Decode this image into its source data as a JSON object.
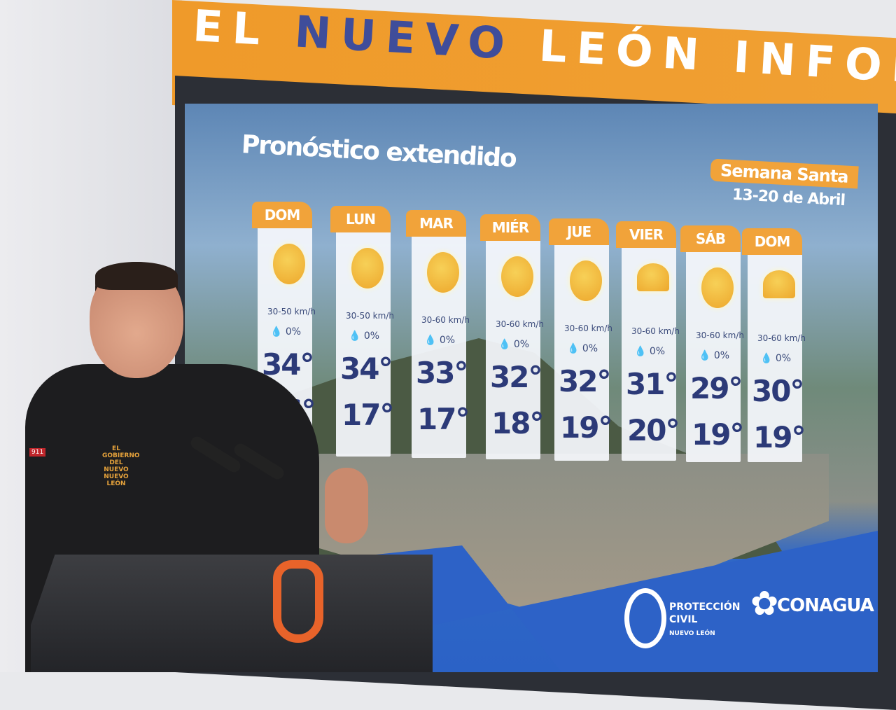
{
  "banner": {
    "title_part1": "EL",
    "title_part2": "NUEVO",
    "title_part3": "LEÓN INFORMA"
  },
  "forecast": {
    "title": "Pronóstico extendido",
    "period_label": "Semana Santa",
    "period_dates": "13-20 de Abril",
    "days": [
      {
        "day": "DOM",
        "icon": "sun-icon",
        "wind": "30-50 km/h",
        "rain": "0%",
        "max": "34°",
        "min": "16°"
      },
      {
        "day": "LUN",
        "icon": "sun-icon",
        "wind": "30-50 km/h",
        "rain": "0%",
        "max": "34°",
        "min": "17°"
      },
      {
        "day": "MAR",
        "icon": "sun-icon",
        "wind": "30-60 km/h",
        "rain": "0%",
        "max": "33°",
        "min": "17°"
      },
      {
        "day": "MIÉR",
        "icon": "sun-icon",
        "wind": "30-60 km/h",
        "rain": "0%",
        "max": "32°",
        "min": "18°"
      },
      {
        "day": "JUE",
        "icon": "sun-icon",
        "wind": "30-60 km/h",
        "rain": "0%",
        "max": "32°",
        "min": "19°"
      },
      {
        "day": "VIER",
        "icon": "partly-cloudy-icon",
        "wind": "30-60 km/h",
        "rain": "0%",
        "max": "31°",
        "min": "20°"
      },
      {
        "day": "SÁB",
        "icon": "sun-icon",
        "wind": "30-60 km/h",
        "rain": "0%",
        "max": "29°",
        "min": "19°"
      },
      {
        "day": "DOM",
        "icon": "partly-cloudy-icon",
        "wind": "30-60 km/h",
        "rain": "0%",
        "max": "30°",
        "min": "19°"
      }
    ]
  },
  "logos": {
    "proteccion_civil": "PROTECCIÓN CIVIL",
    "proteccion_sub": "NUEVO LEÓN",
    "conagua": "CONAGUA"
  },
  "jacket": {
    "emblem": "EL GOBIERNO DEL NUEVO NUEVO LEÓN",
    "patch": "911"
  },
  "colors": {
    "orange": "#f1a33a",
    "navy": "#2c3a78",
    "blue": "#2d62c7"
  }
}
